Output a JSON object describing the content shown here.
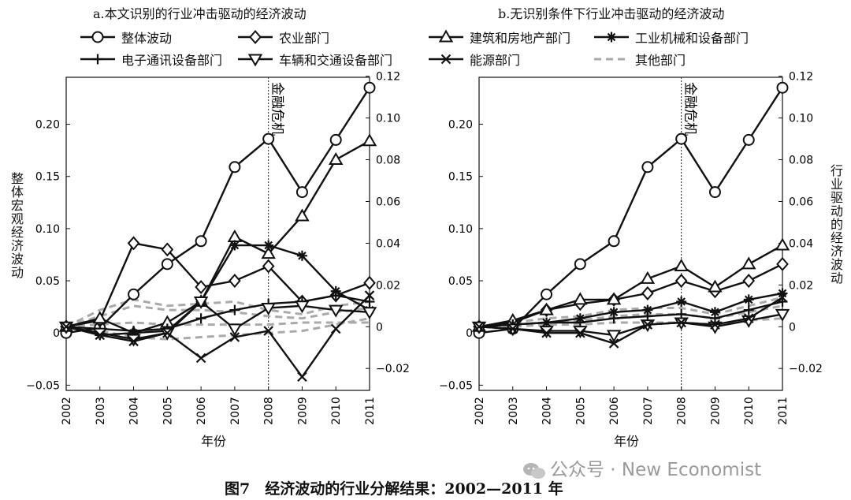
{
  "legend": [
    {
      "key": "overall",
      "label": "整体波动",
      "marker": "circle",
      "dash": ""
    },
    {
      "key": "agri",
      "label": "农业部门",
      "marker": "diamond",
      "dash": ""
    },
    {
      "key": "construction",
      "label": "建筑和房地产部门",
      "marker": "triangle",
      "dash": ""
    },
    {
      "key": "machinery",
      "label": "工业机械和设备部门",
      "marker": "star",
      "dash": ""
    },
    {
      "key": "electronics",
      "label": "电子通讯设备部门",
      "marker": "plus",
      "dash": ""
    },
    {
      "key": "vehicles",
      "label": "车辆和交通设备部门",
      "marker": "triangle-down",
      "dash": ""
    },
    {
      "key": "energy",
      "label": "能源部门",
      "marker": "x",
      "dash": ""
    },
    {
      "key": "other",
      "label": "其他部门",
      "marker": "none",
      "dash": "dashed"
    }
  ],
  "chart_data": [
    {
      "type": "line",
      "title": "a.本文识别的行业冲击驱动的经济波动",
      "xlabel": "年份",
      "ylabel": "整体宏观经济波动",
      "ylabel_right": "",
      "x": [
        2002,
        2003,
        2004,
        2005,
        2006,
        2007,
        2008,
        2009,
        2010,
        2011
      ],
      "ylim_left": [
        -0.055,
        0.245
      ],
      "ylim_right": [
        -0.0305,
        0.1195
      ],
      "yticks_left": [
        "0.20",
        "0.15",
        "0.10",
        "0.05",
        "0",
        "−0.05"
      ],
      "yticks_left_values": [
        0.2,
        0.15,
        0.1,
        0.05,
        0,
        -0.05
      ],
      "yticks_right": [
        "0.12",
        "0.10",
        "0.08",
        "0.06",
        "0.04",
        "0.02",
        "0",
        "−0.02"
      ],
      "yticks_right_values": [
        0.12,
        0.1,
        0.08,
        0.06,
        0.04,
        0.02,
        0,
        -0.02
      ],
      "annotation": {
        "x": 2008,
        "text": "金融危机"
      },
      "series": [
        {
          "key": "overall",
          "axis": "left",
          "values": [
            0,
            0.005,
            0.037,
            0.066,
            0.088,
            0.159,
            0.186,
            0.135,
            0.185,
            0.235
          ]
        },
        {
          "key": "agri",
          "axis": "right",
          "values": [
            0,
            0.003,
            0.04,
            0.037,
            0.019,
            0.022,
            0.029,
            0.012,
            0.015,
            0.021
          ]
        },
        {
          "key": "construction",
          "axis": "right",
          "values": [
            0,
            0.004,
            -0.003,
            0.002,
            0.012,
            0.043,
            0.035,
            0.053,
            0.08,
            0.089
          ]
        },
        {
          "key": "machinery",
          "axis": "right",
          "values": [
            0,
            -0.004,
            -0.003,
            -0.002,
            0.012,
            0.039,
            0.039,
            0.034,
            0.017,
            0.008
          ]
        },
        {
          "key": "electronics",
          "axis": "right",
          "values": [
            0,
            -0.001,
            -0.002,
            -0.001,
            0.004,
            0.008,
            0.011,
            0.012,
            0.015,
            0.012
          ]
        },
        {
          "key": "vehicles",
          "axis": "right",
          "values": [
            0,
            -0.003,
            -0.006,
            -0.003,
            0.012,
            -0.001,
            0.009,
            0.01,
            0.008,
            0.007
          ]
        },
        {
          "key": "energy",
          "axis": "right",
          "values": [
            0,
            -0.004,
            -0.007,
            -0.003,
            -0.015,
            -0.005,
            -0.002,
            -0.024,
            -0.001,
            0.015
          ]
        },
        {
          "key": "other",
          "axis": "right",
          "values": [
            0,
            0.008,
            0.013,
            0.01,
            0.011,
            0.012,
            0.008,
            0.006,
            0.01,
            0.012
          ]
        },
        {
          "key": "other",
          "axis": "right",
          "values": [
            0,
            0.005,
            0.01,
            0.008,
            0.008,
            0.007,
            0.005,
            0.004,
            0.007,
            0.009
          ]
        },
        {
          "key": "other",
          "axis": "right",
          "values": [
            0,
            0.001,
            0.002,
            0.001,
            0.001,
            0.001,
            0.001,
            0.002,
            0.002,
            0.002
          ]
        },
        {
          "key": "other",
          "axis": "right",
          "values": [
            0,
            -0.002,
            -0.005,
            -0.006,
            -0.005,
            -0.004,
            -0.003,
            -0.002,
            0.001,
            0.004
          ]
        }
      ]
    },
    {
      "type": "line",
      "title": "b.无识别条件下行业冲击驱动的经济波动",
      "xlabel": "年份",
      "ylabel": "",
      "ylabel_right": "行业驱动的经济波动",
      "x": [
        2002,
        2003,
        2004,
        2005,
        2006,
        2007,
        2008,
        2009,
        2010,
        2011
      ],
      "ylim_left": [
        -0.055,
        0.245
      ],
      "ylim_right": [
        -0.0305,
        0.1195
      ],
      "yticks_left": [
        "0.20",
        "0.15",
        "0.10",
        "0.05",
        "0",
        "−0.05"
      ],
      "yticks_left_values": [
        0.2,
        0.15,
        0.1,
        0.05,
        0,
        -0.05
      ],
      "yticks_right": [
        "0.12",
        "0.10",
        "0.08",
        "0.06",
        "0.04",
        "0.02",
        "0",
        "−0.02"
      ],
      "yticks_right_values": [
        0.12,
        0.1,
        0.08,
        0.06,
        0.04,
        0.02,
        0,
        -0.02
      ],
      "annotation": {
        "x": 2008,
        "text": "金融危机"
      },
      "series": [
        {
          "key": "overall",
          "axis": "left",
          "values": [
            0,
            0.004,
            0.037,
            0.066,
            0.088,
            0.159,
            0.186,
            0.135,
            0.185,
            0.235
          ]
        },
        {
          "key": "agri",
          "axis": "right",
          "values": [
            0,
            0.002,
            0.008,
            0.011,
            0.013,
            0.016,
            0.022,
            0.017,
            0.022,
            0.03
          ]
        },
        {
          "key": "construction",
          "axis": "right",
          "values": [
            0,
            0.003,
            0.008,
            0.013,
            0.013,
            0.023,
            0.029,
            0.019,
            0.03,
            0.039
          ]
        },
        {
          "key": "machinery",
          "axis": "right",
          "values": [
            0,
            0.001,
            0.002,
            0.004,
            0.007,
            0.008,
            0.012,
            0.007,
            0.013,
            0.016
          ]
        },
        {
          "key": "electronics",
          "axis": "right",
          "values": [
            0,
            0.001,
            0.002,
            0.002,
            0.004,
            0.005,
            0.006,
            0.004,
            0.008,
            0.012
          ]
        },
        {
          "key": "vehicles",
          "axis": "right",
          "values": [
            0,
            -0.001,
            -0.002,
            -0.002,
            -0.004,
            0.001,
            0.002,
            0,
            0.003,
            0.006
          ]
        },
        {
          "key": "energy",
          "axis": "right",
          "values": [
            0,
            -0.001,
            -0.003,
            -0.003,
            -0.008,
            0.001,
            0.002,
            0.001,
            0.004,
            0.014
          ]
        },
        {
          "key": "other",
          "axis": "right",
          "values": [
            0,
            0.002,
            0.004,
            0.005,
            0.008,
            0.009,
            0.009,
            0.006,
            0.01,
            0.014
          ]
        },
        {
          "key": "other",
          "axis": "right",
          "values": [
            0,
            0.001,
            0.002,
            0.003,
            0.005,
            0.006,
            0.006,
            0.004,
            0.007,
            0.01
          ]
        },
        {
          "key": "other",
          "axis": "right",
          "values": [
            0,
            0,
            0.001,
            0.001,
            0.002,
            0.002,
            0.002,
            0.001,
            0.003,
            0.004
          ]
        }
      ]
    }
  ],
  "caption": "图7　经济波动的行业分解结果：2002—2011 年",
  "watermark": "公众号 · New Economist"
}
